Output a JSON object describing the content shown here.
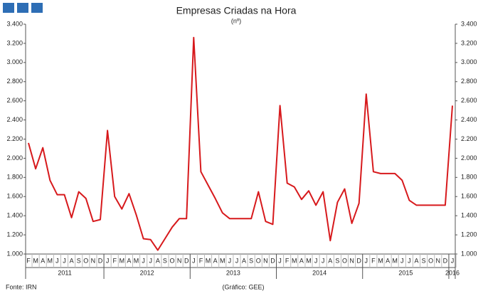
{
  "chart_data": {
    "type": "line",
    "title": "Empresas Criadas na Hora",
    "subtitle": "(nº)",
    "source": "Fonte: IRN",
    "credit": "(Gráfico: GEE)",
    "categories": [
      "F",
      "M",
      "A",
      "M",
      "J",
      "J",
      "A",
      "S",
      "O",
      "N",
      "D",
      "J",
      "F",
      "M",
      "A",
      "M",
      "J",
      "J",
      "A",
      "S",
      "O",
      "N",
      "D",
      "J",
      "F",
      "M",
      "A",
      "M",
      "J",
      "J",
      "A",
      "S",
      "O",
      "N",
      "D",
      "J",
      "F",
      "M",
      "A",
      "M",
      "J",
      "J",
      "A",
      "S",
      "O",
      "N",
      "D",
      "J",
      "F",
      "M",
      "A",
      "M",
      "J",
      "J",
      "A",
      "S",
      "O",
      "N",
      "D",
      "J"
    ],
    "years": [
      "2011",
      "2012",
      "2013",
      "2014",
      "2015",
      "2016"
    ],
    "series": [
      {
        "color": "#d7191c",
        "values": [
          2160,
          1890,
          2110,
          1770,
          1620,
          1620,
          1380,
          1650,
          1580,
          1340,
          1360,
          2290,
          1600,
          1470,
          1630,
          1410,
          1160,
          1150,
          1040,
          1160,
          1280,
          1370,
          1370,
          3260,
          1860,
          1720,
          1580,
          1430,
          1370,
          1370,
          1370,
          1370,
          1650,
          1340,
          1310,
          2550,
          1740,
          1700,
          1570,
          1660,
          1510,
          1650,
          1140,
          1540,
          1680,
          1320,
          1530,
          2670,
          1860,
          1840,
          1840,
          1840,
          1770,
          1560,
          1510,
          1510,
          1510,
          1510,
          1510,
          2550
        ]
      }
    ],
    "ylim": [
      1000,
      3400
    ],
    "yticks": [
      {
        "value": 1000,
        "label": "1.000"
      },
      {
        "value": 1200,
        "label": "1.200"
      },
      {
        "value": 1400,
        "label": "1.400"
      },
      {
        "value": 1600,
        "label": "1.600"
      },
      {
        "value": 1800,
        "label": "1.800"
      },
      {
        "value": 2000,
        "label": "2.000"
      },
      {
        "value": 2200,
        "label": "2.200"
      },
      {
        "value": 2400,
        "label": "2.400"
      },
      {
        "value": 2600,
        "label": "2.600"
      },
      {
        "value": 2800,
        "label": "2.800"
      },
      {
        "value": 3000,
        "label": "3.000"
      },
      {
        "value": 3200,
        "label": "3.200"
      },
      {
        "value": 3400,
        "label": "3.400"
      }
    ],
    "y2lim": [
      1000,
      3400
    ],
    "y2ticks": [
      {
        "value": 1000,
        "label": "1.000"
      },
      {
        "value": 1200,
        "label": "1.200"
      },
      {
        "value": 1400,
        "label": "1.400"
      },
      {
        "value": 1600,
        "label": "1.600"
      },
      {
        "value": 1800,
        "label": "1.800"
      },
      {
        "value": 2000,
        "label": "2.000"
      },
      {
        "value": 2200,
        "label": "2.200"
      },
      {
        "value": 2400,
        "label": "2.400"
      },
      {
        "value": 2600,
        "label": "2.600"
      },
      {
        "value": 2800,
        "label": "2.800"
      },
      {
        "value": 3000,
        "label": "3.000"
      },
      {
        "value": 3200,
        "label": "3.200"
      },
      {
        "value": 3400,
        "label": "3.400"
      }
    ]
  }
}
